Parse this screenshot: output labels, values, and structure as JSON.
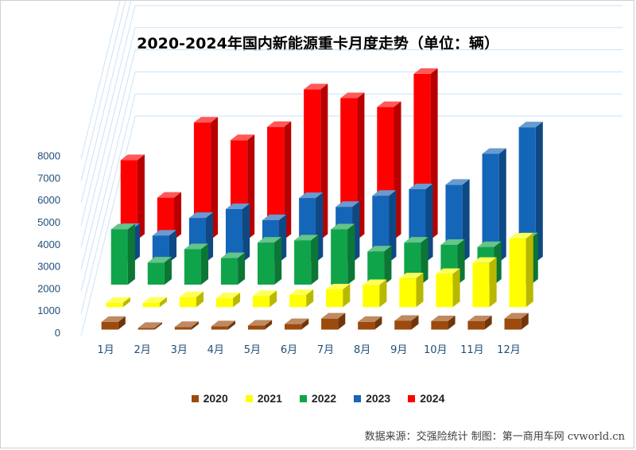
{
  "chart_data": {
    "type": "bar",
    "title": "2020-2024年国内新能源重卡月度走势（单位：辆）",
    "categories": [
      "1月",
      "2月",
      "3月",
      "4月",
      "5月",
      "6月",
      "7月",
      "8月",
      "9月",
      "10月",
      "11月",
      "12月"
    ],
    "yticks": [
      "0",
      "1000",
      "2000",
      "3000",
      "4000",
      "5000",
      "6000",
      "7000",
      "8000"
    ],
    "ylim": [
      0,
      8000
    ],
    "series": [
      {
        "name": "2020",
        "color": "#9c4a0e",
        "values": [
          350,
          80,
          120,
          150,
          180,
          250,
          500,
          350,
          400,
          380,
          380,
          500
        ]
      },
      {
        "name": "2021",
        "color": "#ffff00",
        "values": [
          200,
          200,
          450,
          400,
          500,
          550,
          800,
          1000,
          1300,
          1500,
          2000,
          3100
        ]
      },
      {
        "name": "2022",
        "color": "#10a44a",
        "values": [
          2500,
          1000,
          1600,
          1200,
          1900,
          2000,
          2500,
          1500,
          1900,
          1800,
          1700,
          2100
        ]
      },
      {
        "name": "2023",
        "color": "#1466b8",
        "values": [
          1500,
          1200,
          2000,
          2400,
          1900,
          2900,
          2500,
          3000,
          3300,
          3500,
          4900,
          6100
        ]
      },
      {
        "name": "2024",
        "color": "#ff0000",
        "values": [
          3600,
          1900,
          5300,
          4500,
          5100,
          6800,
          6400,
          6000,
          7500,
          0,
          0,
          0
        ]
      }
    ],
    "source": "数据来源：交强险统计  制图：第一商用车网 cvworld.cn"
  }
}
